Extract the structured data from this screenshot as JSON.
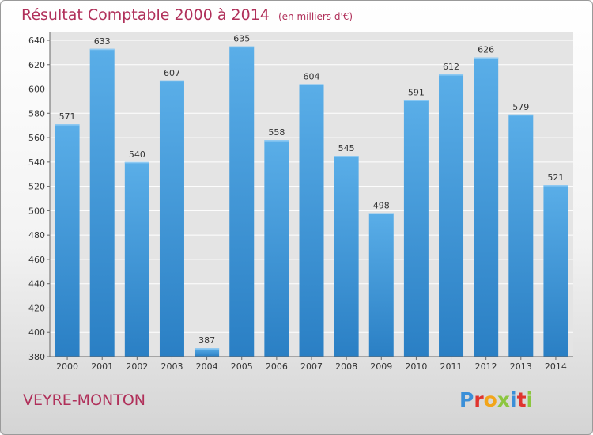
{
  "header": {
    "title": "Résultat Comptable 2000 à 2014",
    "unit": "(en milliers d'€)"
  },
  "footer": {
    "town": "VEYRE-MONTON",
    "brand": "Proxiti"
  },
  "colors": {
    "title": "#b0305a",
    "bar_light": "#5aaee8",
    "bar_dark": "#2a7fc4",
    "brand_letters": [
      "#3a8fd8",
      "#e0342e",
      "#f2a51a",
      "#8cc63f",
      "#3a8fd8",
      "#e0342e",
      "#8cc63f"
    ]
  },
  "chart_data": {
    "type": "bar",
    "title": "Résultat Comptable 2000 à 2014",
    "xlabel": "",
    "ylabel": "",
    "categories": [
      "2000",
      "2001",
      "2002",
      "2003",
      "2004",
      "2005",
      "2006",
      "2007",
      "2008",
      "2009",
      "2010",
      "2011",
      "2012",
      "2013",
      "2014"
    ],
    "values": [
      571,
      633,
      540,
      607,
      387,
      635,
      558,
      604,
      545,
      498,
      591,
      612,
      626,
      579,
      521
    ],
    "ylim": [
      380,
      640
    ],
    "yticks": [
      380,
      400,
      420,
      440,
      460,
      480,
      500,
      520,
      540,
      560,
      580,
      600,
      620,
      640
    ],
    "grid": true,
    "data_labels": true
  }
}
